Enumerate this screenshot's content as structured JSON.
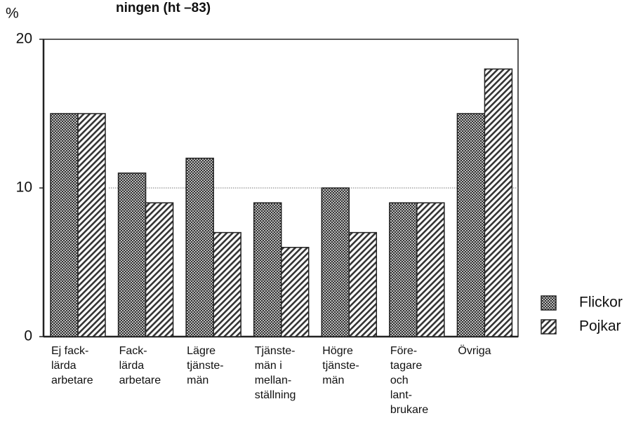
{
  "chart_data": {
    "type": "bar",
    "title": "ningen (ht –83)",
    "ylabel": "%",
    "categories": [
      [
        "Ej fack-",
        "lärda",
        "arbetare"
      ],
      [
        "Fack-",
        "lärda",
        "arbetare"
      ],
      [
        "Lägre",
        "tjänste-",
        "män"
      ],
      [
        "Tjänste-",
        "män i",
        "mellan-",
        "ställning"
      ],
      [
        "Högre",
        "tjänste-",
        "män"
      ],
      [
        "Före-",
        "tagare",
        "och",
        "lant-",
        "brukare"
      ],
      [
        "Övriga"
      ]
    ],
    "series": [
      {
        "name": "Flickor",
        "color": "#555555",
        "values": [
          15,
          11,
          12,
          9,
          10,
          9,
          15
        ]
      },
      {
        "name": "Pojkar",
        "color": "#555555",
        "values": [
          15,
          9,
          7,
          6,
          7,
          9,
          18
        ]
      }
    ],
    "ylim": [
      0,
      20
    ],
    "yticks": [
      0,
      10,
      20
    ],
    "grid": true,
    "legend": "right"
  }
}
